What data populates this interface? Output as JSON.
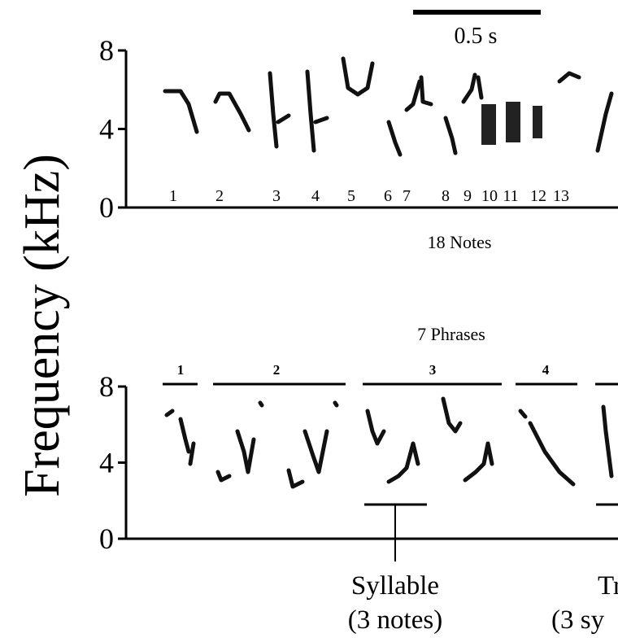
{
  "scale_bar": {
    "label": "0.5 s"
  },
  "y_axis_label": "Frequency (kHz)",
  "panels": [
    {
      "yticks": [
        0,
        4,
        8
      ],
      "note_numbers": [
        "1",
        "2",
        "3",
        "4",
        "5",
        "6",
        "7",
        "8",
        "9",
        "10",
        "11",
        "12",
        "13"
      ],
      "caption": "18 Notes"
    },
    {
      "title": "7 Phrases",
      "yticks": [
        0,
        4,
        8
      ],
      "phrase_numbers": [
        "1",
        "2",
        "3",
        "4"
      ],
      "annotations": [
        {
          "label": "Syllable",
          "sublabel": "(3 notes)"
        },
        {
          "label": "Tr",
          "sublabel": "(3 sy"
        }
      ]
    }
  ]
}
